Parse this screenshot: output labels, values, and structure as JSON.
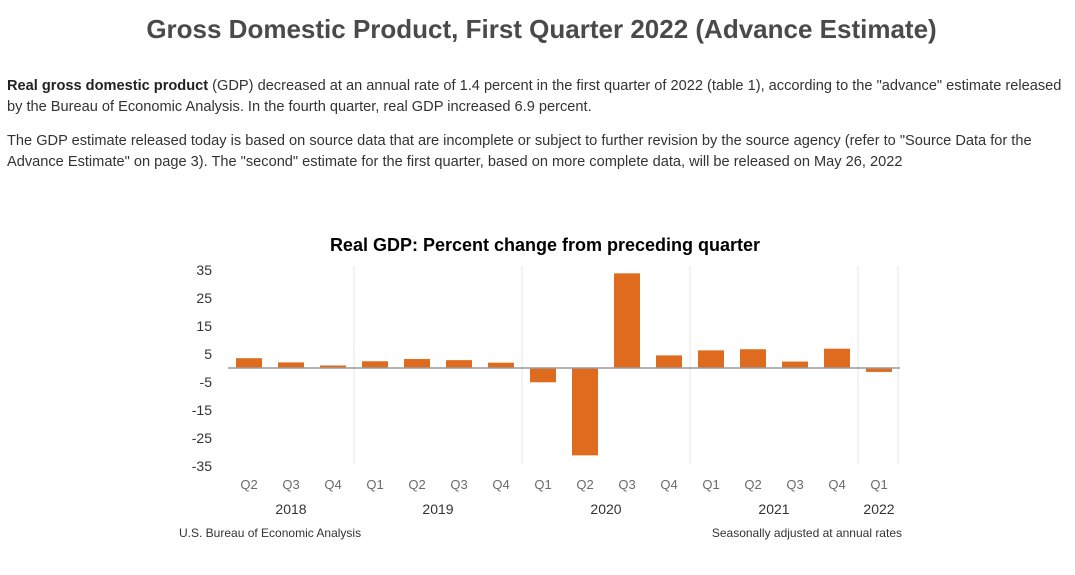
{
  "page_title": "Gross Domestic Product, First Quarter 2022 (Advance Estimate)",
  "paragraph1": {
    "bold_lead": "Real gross domestic product",
    "text": " (GDP) decreased at an annual rate of 1.4 percent in the first quarter of 2022 (table 1), according to the \"advance\" estimate released by the Bureau of Economic Analysis. In the fourth quarter, real GDP increased 6.9 percent."
  },
  "paragraph2": {
    "text": "The GDP estimate released today is based on source data that are incomplete or subject to further revision by the source agency (refer to \"Source Data for the Advance Estimate\" on page 3). The \"second\" estimate for the first quarter, based on more complete data, will be released on May 26, 2022"
  },
  "chart_data": {
    "type": "bar",
    "title": "Real GDP:  Percent change from preceding quarter",
    "categories": [
      "Q2",
      "Q3",
      "Q4",
      "Q1",
      "Q2",
      "Q3",
      "Q4",
      "Q1",
      "Q2",
      "Q3",
      "Q4",
      "Q1",
      "Q2",
      "Q3",
      "Q4",
      "Q1"
    ],
    "values": [
      3.5,
      2.0,
      0.9,
      2.4,
      3.2,
      2.8,
      1.9,
      -5.1,
      -31.2,
      33.8,
      4.5,
      6.3,
      6.7,
      2.3,
      6.9,
      -1.4
    ],
    "year_labels": [
      {
        "label": "2018",
        "start": 0,
        "end": 2
      },
      {
        "label": "2019",
        "start": 3,
        "end": 6
      },
      {
        "label": "2020",
        "start": 7,
        "end": 10
      },
      {
        "label": "2021",
        "start": 11,
        "end": 14
      },
      {
        "label": "2022",
        "start": 15,
        "end": 15
      }
    ],
    "yticks": [
      35,
      25,
      15,
      5,
      -5,
      -15,
      -25,
      -35
    ],
    "ylim": [
      -35,
      35
    ],
    "bar_color": "#de6b1e",
    "source": "U.S. Bureau of Economic Analysis",
    "note": "Seasonally adjusted at annual rates"
  }
}
